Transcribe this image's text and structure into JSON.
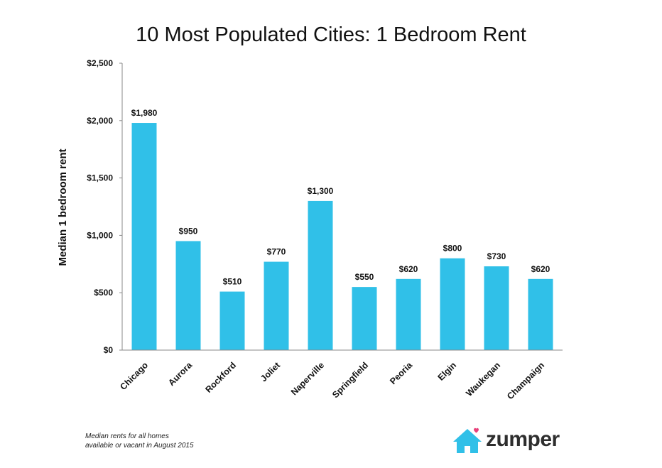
{
  "chart_data": {
    "type": "bar",
    "title": "10 Most Populated Cities: 1 Bedroom Rent",
    "xlabel": "",
    "ylabel": "Median 1 bedroom rent",
    "categories": [
      "Chicago",
      "Aurora",
      "Rockford",
      "Joliet",
      "Naperville",
      "Springfield",
      "Peoria",
      "Elgin",
      "Waukegan",
      "Champaign"
    ],
    "values": [
      1980,
      950,
      510,
      770,
      1300,
      550,
      620,
      800,
      730,
      620
    ],
    "value_labels": [
      "$1,980",
      "$950",
      "$510",
      "$770",
      "$1,300",
      "$550",
      "$620",
      "$800",
      "$730",
      "$620"
    ],
    "ylim": [
      0,
      2500
    ],
    "yticks": [
      0,
      500,
      1000,
      1500,
      2000,
      2500
    ],
    "ytick_labels": [
      "$0",
      "$500",
      "$1,000",
      "$1,500",
      "$2,000",
      "$2,500"
    ],
    "grid": false,
    "bar_color": "#30c0e8"
  },
  "footnote": {
    "line1": "Median rents for all homes",
    "line2": "available or vacant in August 2015"
  },
  "logo": {
    "text": "zumper",
    "icon": "house-heart-icon",
    "icon_color": "#30c0e8",
    "heart_color": "#e8417a"
  }
}
